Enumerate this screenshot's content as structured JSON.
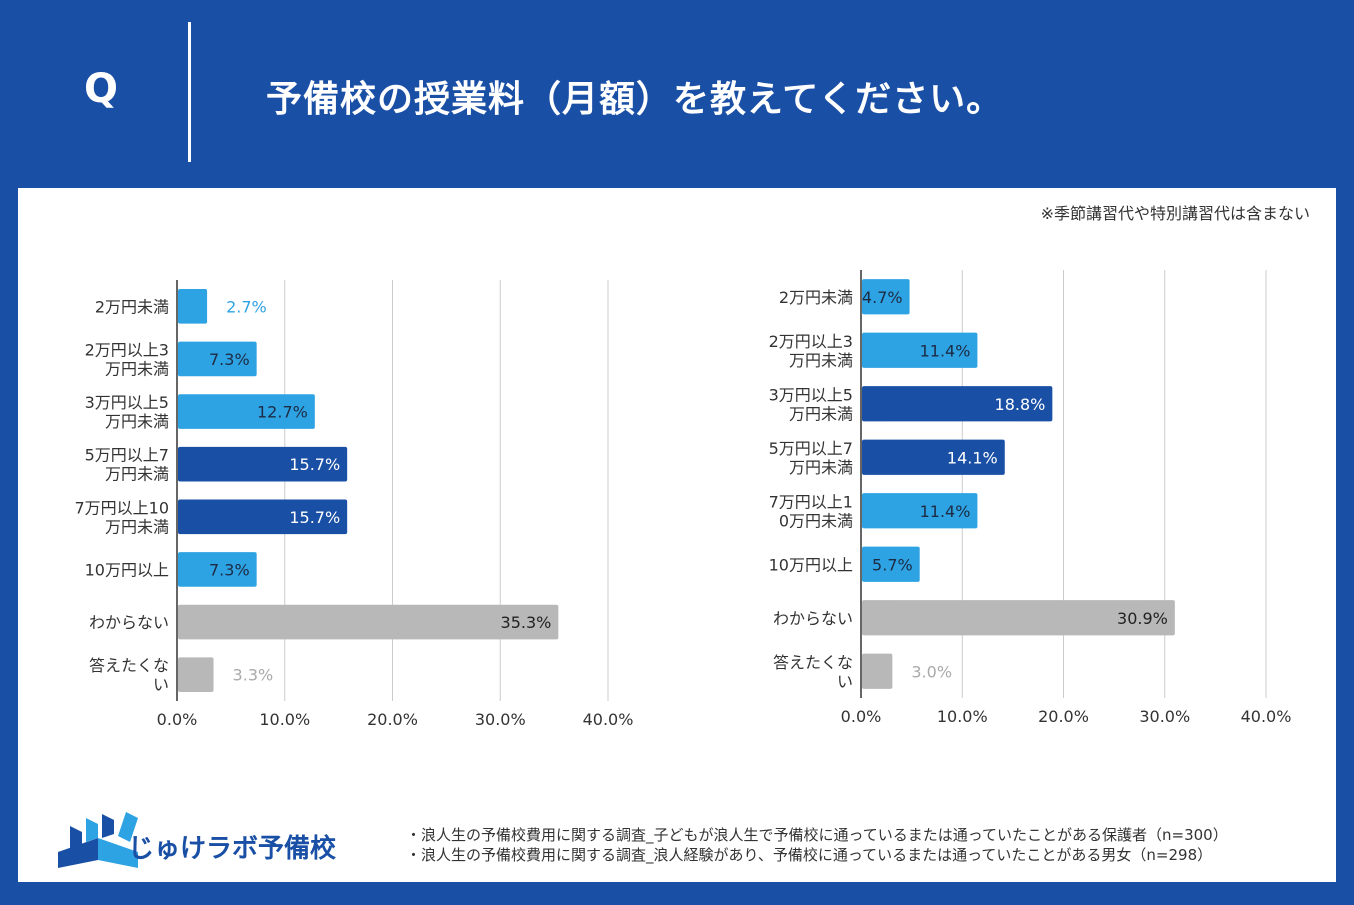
{
  "header": {
    "q_label": "Q",
    "question": "予備校の授業料（月額）を教えてください。"
  },
  "note": "※季節講習代や特別講習代は含まない",
  "colors": {
    "header_bg": "#1a4fa6",
    "light_blue": "#2ea3e3",
    "dark_blue": "#1a4fa6",
    "gray": "#b8b8b8"
  },
  "chart_data": [
    {
      "type": "bar",
      "orientation": "horizontal",
      "categories": [
        [
          "2万円未満"
        ],
        [
          "2万円以上3",
          "万円未満"
        ],
        [
          "3万円以上5",
          "万円未満"
        ],
        [
          "5万円以上7",
          "万円未満"
        ],
        [
          "7万円以上10",
          "万円未満"
        ],
        [
          "10万円以上"
        ],
        [
          "わからない"
        ],
        [
          "答えたくな",
          "い"
        ]
      ],
      "values": [
        2.7,
        7.3,
        12.7,
        15.7,
        15.7,
        7.3,
        35.3,
        3.3
      ],
      "labels": [
        "2.7%",
        "7.3%",
        "12.7%",
        "15.7%",
        "15.7%",
        "7.3%",
        "35.3%",
        "3.3%"
      ],
      "bar_colors": [
        "light",
        "light",
        "light",
        "dark",
        "dark",
        "light",
        "gray",
        "gray"
      ],
      "xlim": [
        0,
        40
      ],
      "ticks": [
        "0.0%",
        "10.0%",
        "20.0%",
        "30.0%",
        "40.0%"
      ],
      "grid": true
    },
    {
      "type": "bar",
      "orientation": "horizontal",
      "categories": [
        [
          "2万円未満"
        ],
        [
          "2万円以上3",
          "万円未満"
        ],
        [
          "3万円以上5",
          "万円未満"
        ],
        [
          "5万円以上7",
          "万円未満"
        ],
        [
          "7万円以上1",
          "0万円未満"
        ],
        [
          "10万円以上"
        ],
        [
          "わからない"
        ],
        [
          "答えたくな",
          "い"
        ]
      ],
      "values": [
        4.7,
        11.4,
        18.8,
        14.1,
        11.4,
        5.7,
        30.9,
        3.0
      ],
      "labels": [
        "4.7%",
        "11.4%",
        "18.8%",
        "14.1%",
        "11.4%",
        "5.7%",
        "30.9%",
        "3.0%"
      ],
      "bar_colors": [
        "light",
        "light",
        "dark",
        "dark",
        "light",
        "light",
        "gray",
        "gray"
      ],
      "xlim": [
        0,
        40
      ],
      "ticks": [
        "0.0%",
        "10.0%",
        "20.0%",
        "30.0%",
        "40.0%"
      ],
      "grid": true
    }
  ],
  "footer": {
    "logo_text": "じゅけラボ予備校",
    "sources": [
      "・浪人生の予備校費用に関する調査_子どもが浪人生で予備校に通っているまたは通っていたことがある保護者（n=300）",
      "・浪人生の予備校費用に関する調査_浪人経験があり、予備校に通っているまたは通っていたことがある男女（n=298）"
    ]
  }
}
